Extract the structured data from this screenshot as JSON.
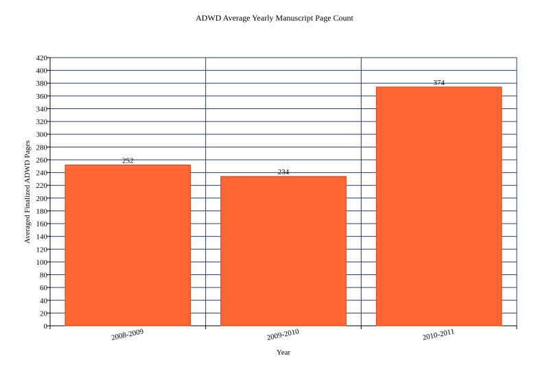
{
  "chart_data": {
    "type": "bar",
    "title": "ADWD Average Yearly Manuscript Page Count",
    "xlabel": "Year",
    "ylabel": "Averaged Finalized ADWD Pages",
    "categories": [
      "2008-2009",
      "2009-2010",
      "2010-2011"
    ],
    "values": [
      252,
      234,
      374
    ],
    "data_labels": [
      "252",
      "234",
      "374"
    ],
    "ylim": [
      0,
      420
    ],
    "y_ticks": [
      0,
      20,
      40,
      60,
      80,
      100,
      120,
      140,
      160,
      180,
      200,
      220,
      240,
      260,
      280,
      300,
      320,
      340,
      360,
      380,
      400,
      420
    ],
    "grid": true,
    "legend": "none",
    "colors": {
      "bar_fill": "#ff6633",
      "bar_stroke": "#c8451a",
      "gridline": "#1f3f63",
      "axis": "#000000"
    }
  }
}
